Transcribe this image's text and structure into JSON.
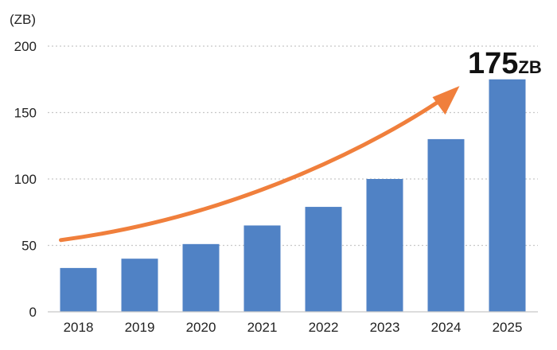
{
  "chart_data": {
    "type": "bar",
    "title": "",
    "xlabel": "",
    "ylabel": "",
    "unit_label": "(ZB)",
    "categories": [
      "2018",
      "2019",
      "2020",
      "2021",
      "2022",
      "2023",
      "2024",
      "2025"
    ],
    "values": [
      33,
      40,
      51,
      65,
      79,
      100,
      130,
      175
    ],
    "ylim": [
      0,
      200
    ],
    "yticks": [
      "0",
      "50",
      "100",
      "150",
      "200"
    ],
    "grid": "dotted horizontal",
    "bar_color": "#5082c5",
    "trend_arrow_color": "#f07f3c",
    "callout": {
      "value": "175",
      "unit": "ZB"
    }
  }
}
